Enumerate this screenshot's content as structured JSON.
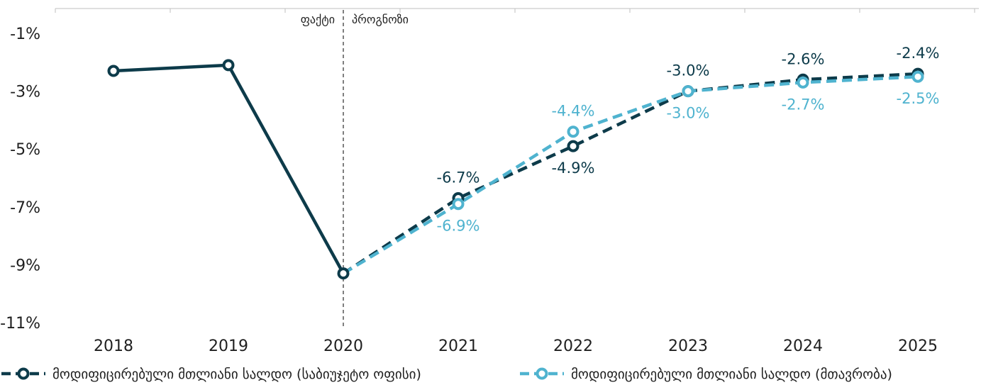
{
  "chart_data": {
    "type": "line",
    "title": "",
    "xlabel": "",
    "ylabel": "",
    "x": [
      "2018",
      "2019",
      "2020",
      "2021",
      "2022",
      "2023",
      "2024",
      "2025"
    ],
    "y_ticks": [
      "-1%",
      "-3%",
      "-5%",
      "-7%",
      "-9%",
      "-11%"
    ],
    "ylim": [
      -11,
      0
    ],
    "grid": false,
    "legend_position": "bottom",
    "region_labels": {
      "actual": "ფაქტი",
      "forecast": "პროგნოზი"
    },
    "region_split_x": "2020",
    "series": [
      {
        "name": "მოდიფიცირებული მთლიანი სალდო (საბიუჯეტო ოფისი)",
        "color": "#0d3b4a",
        "values": [
          -2.3,
          -2.1,
          -9.3,
          -6.7,
          -4.9,
          -3.0,
          -2.6,
          -2.4
        ],
        "labels": [
          null,
          null,
          null,
          "-6.7%",
          "-4.9%",
          "-3.0%",
          "-2.6%",
          "-2.4%"
        ],
        "label_pos": [
          null,
          null,
          null,
          "above",
          "below",
          "above",
          "above",
          "above"
        ]
      },
      {
        "name": "მოდიფიცირებული მთლიანი სალდო (მთავრობა)",
        "color": "#4fb3cf",
        "values": [
          null,
          null,
          -9.3,
          -6.9,
          -4.4,
          -3.0,
          -2.7,
          -2.5
        ],
        "labels": [
          null,
          null,
          null,
          "-6.9%",
          "-4.4%",
          "-3.0%",
          "-2.7%",
          "-2.5%"
        ],
        "label_pos": [
          null,
          null,
          null,
          "below",
          "above",
          "below",
          "below",
          "below"
        ]
      }
    ]
  }
}
